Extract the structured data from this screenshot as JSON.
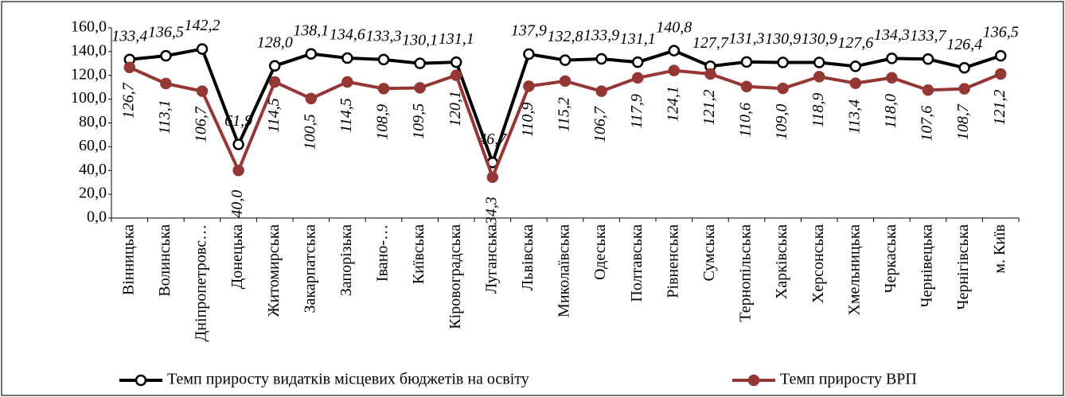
{
  "chart_data": {
    "type": "line",
    "categories": [
      "Вінницька",
      "Волинська",
      "Дніпропетровс…",
      "Донецька",
      "Житомирська",
      "Закарпатська",
      "Запорізька",
      "Івано-…",
      "Київська",
      "Кіровоградська",
      "Луганська",
      "Львівська",
      "Миколаївська",
      "Одеська",
      "Полтавська",
      "Рівненська",
      "Сумська",
      "Тернопільська",
      "Харківська",
      "Херсонська",
      "Хмельницька",
      "Черкаська",
      "Чернівецька",
      "Чернігівська",
      "м. Київ"
    ],
    "series": [
      {
        "name": "Темп приросту видатків місцевих бюджетів на освіту",
        "color": "#000000",
        "marker_fill": "#ffffff",
        "label_color": "#000000",
        "values": [
          133.4,
          136.5,
          142.2,
          61.9,
          128.0,
          138.1,
          134.6,
          133.3,
          130.1,
          131.1,
          46.7,
          137.9,
          132.8,
          133.9,
          131.1,
          140.8,
          127.7,
          131.3,
          130.9,
          130.9,
          127.6,
          134.3,
          133.7,
          126.4,
          136.5
        ],
        "value_labels": [
          "133,4",
          "136,5",
          "142,2",
          "61,9",
          "128,0",
          "138,1",
          "134,6",
          "133,3",
          "130,1",
          "131,1",
          "46,7",
          "137,9",
          "132,8",
          "133,9",
          "131,1",
          "140,8",
          "127,7",
          "131,3",
          "130,9",
          "130,9",
          "127,6",
          "134,3",
          "133,7",
          "126,4",
          "136,5"
        ]
      },
      {
        "name": "Темп приросту ВРП",
        "color": "#953735",
        "marker_fill": "#953735",
        "label_color": "#4f6228",
        "values": [
          126.7,
          113.1,
          106.7,
          40.0,
          114.5,
          100.5,
          114.5,
          108.9,
          109.5,
          120.1,
          34.3,
          110.9,
          115.2,
          106.7,
          117.9,
          124.1,
          121.2,
          110.6,
          109.0,
          118.9,
          113.4,
          118.0,
          107.6,
          108.7,
          121.2
        ],
        "value_labels": [
          "126,7",
          "113,1",
          "106,7",
          "40,0",
          "114,5",
          "100,5",
          "114,5",
          "108,9",
          "109,5",
          "120,1",
          "34,3",
          "110,9",
          "115,2",
          "106,7",
          "117,9",
          "124,1",
          "121,2",
          "110,6",
          "109,0",
          "118,9",
          "113,4",
          "118,0",
          "107,6",
          "108,7",
          "121,2"
        ]
      }
    ],
    "ylim": [
      0,
      160
    ],
    "yticks": [
      {
        "value": 0,
        "label": "0,0"
      },
      {
        "value": 20,
        "label": "20,0"
      },
      {
        "value": 40,
        "label": "40,0"
      },
      {
        "value": 60,
        "label": "60,0"
      },
      {
        "value": 80,
        "label": "80,0"
      },
      {
        "value": 100,
        "label": "100,0"
      },
      {
        "value": 120,
        "label": "120,0"
      },
      {
        "value": 140,
        "label": "140,0"
      },
      {
        "value": 160,
        "label": "160,0"
      }
    ],
    "grid": false,
    "legend": "bottom"
  }
}
